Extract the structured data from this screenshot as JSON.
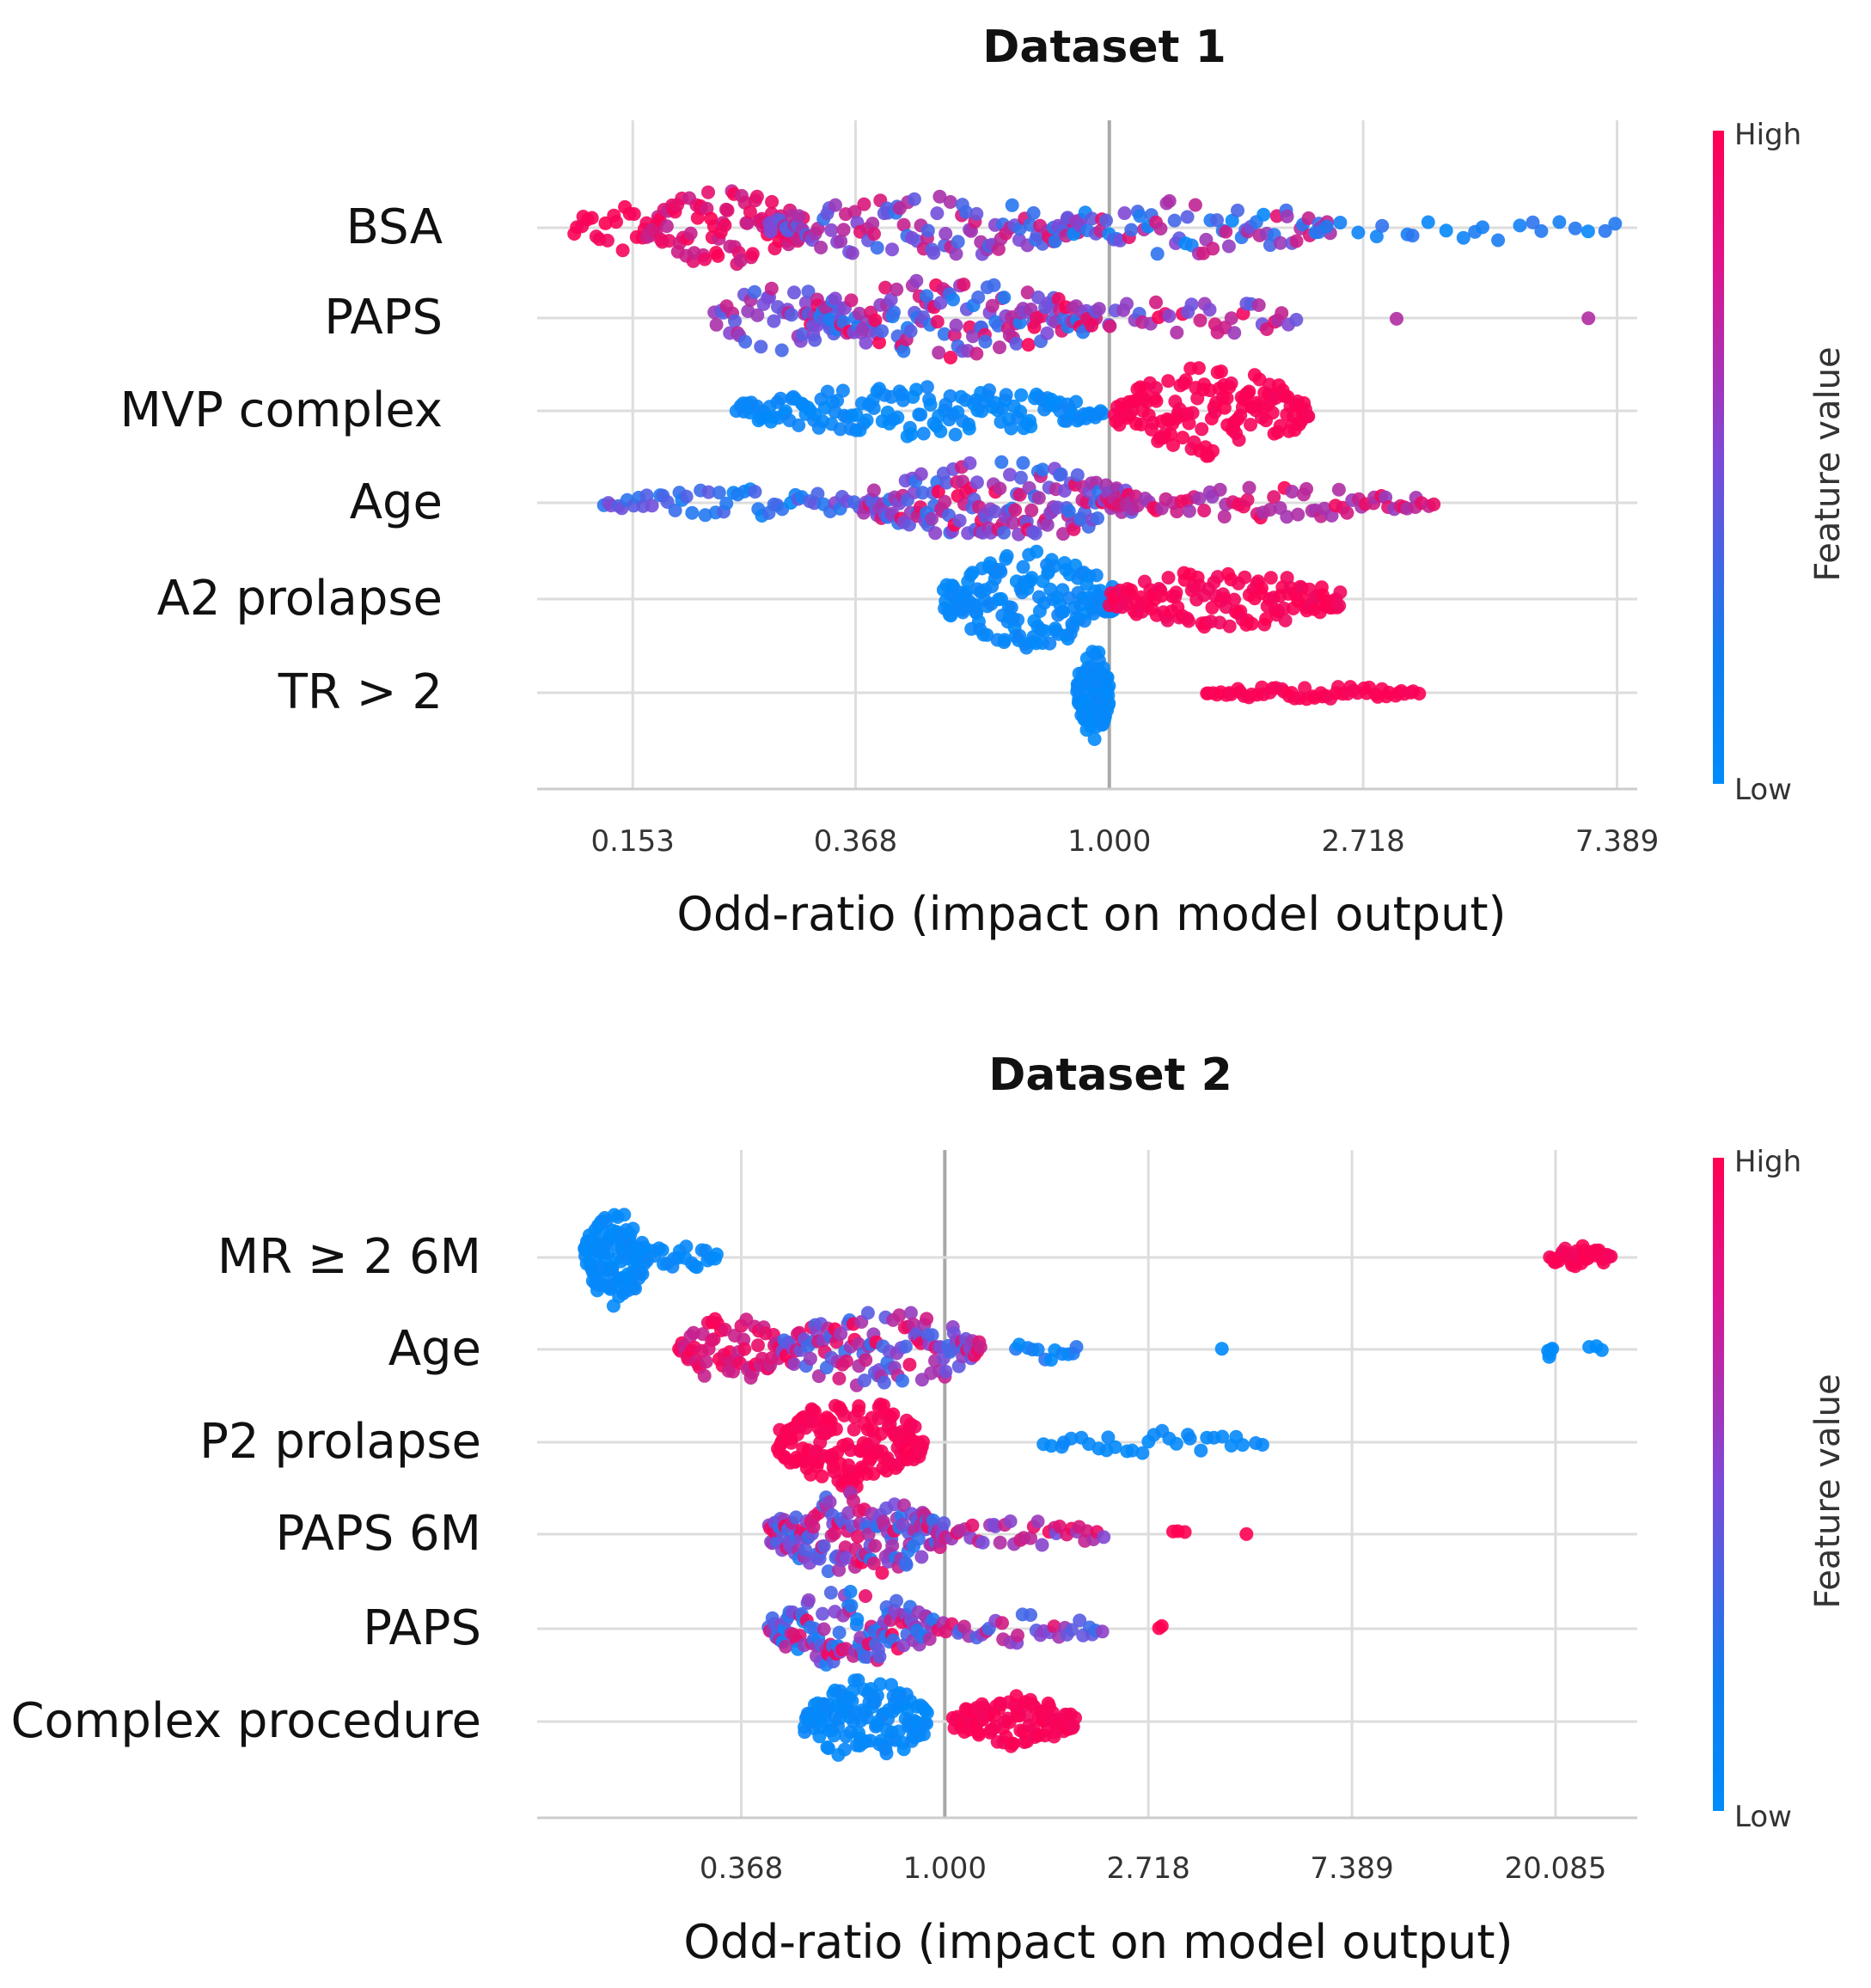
{
  "chart_data": [
    {
      "type": "scatter",
      "subtype": "shap-beeswarm",
      "title": "Dataset 1",
      "xlabel": "Odd-ratio (impact on model output)",
      "x_scale": "log",
      "ticks": [
        {
          "value": 0.153,
          "label": "0.153"
        },
        {
          "value": 0.368,
          "label": "0.368"
        },
        {
          "value": 1.0,
          "label": "1.000"
        },
        {
          "value": 2.718,
          "label": "2.718"
        },
        {
          "value": 7.389,
          "label": "7.389"
        }
      ],
      "xlim": [
        0.105,
        8.0
      ],
      "colorbar": {
        "title": "Feature value",
        "high_label": "High",
        "low_label": "Low",
        "high_color": "#ff0052",
        "low_color": "#008bfb"
      },
      "features": [
        {
          "name": "BSA",
          "segments": [
            {
              "from": 0.12,
              "to": 0.17,
              "n": 22,
              "c0": 0.95,
              "c1": 1.0,
              "w": 0.6
            },
            {
              "from": 0.16,
              "to": 0.3,
              "n": 90,
              "c0": 0.75,
              "c1": 1.0,
              "w": 1.0
            },
            {
              "from": 0.26,
              "to": 0.9,
              "n": 110,
              "c0": 0.15,
              "c1": 0.9,
              "w": 0.8
            },
            {
              "from": 0.8,
              "to": 2.4,
              "n": 75,
              "c0": 0.0,
              "c1": 0.9,
              "w": 0.75
            },
            {
              "from": 2.2,
              "to": 7.6,
              "n": 22,
              "c0": 0.0,
              "c1": 0.2,
              "w": 0.35
            }
          ]
        },
        {
          "name": "PAPS",
          "segments": [
            {
              "from": 0.21,
              "to": 0.35,
              "n": 45,
              "c0": 0.25,
              "c1": 0.8,
              "w": 0.85
            },
            {
              "from": 0.3,
              "to": 0.95,
              "n": 150,
              "c0": 0.1,
              "c1": 1.0,
              "w": 1.0
            },
            {
              "from": 0.9,
              "to": 2.1,
              "n": 40,
              "c0": 0.3,
              "c1": 1.0,
              "w": 0.55
            },
            {
              "from": 3.1,
              "to": 3.1,
              "n": 1,
              "c0": 0.7,
              "c1": 0.7,
              "w": 0.1
            },
            {
              "from": 6.6,
              "to": 6.6,
              "n": 1,
              "c0": 0.7,
              "c1": 0.7,
              "w": 0.1
            }
          ]
        },
        {
          "name": "MVP complex",
          "segments": [
            {
              "from": 0.23,
              "to": 0.98,
              "n": 150,
              "c0": 0.0,
              "c1": 0.06,
              "w": 0.65
            },
            {
              "from": 1.02,
              "to": 2.2,
              "n": 140,
              "c0": 0.96,
              "c1": 1.0,
              "w": 1.15
            }
          ]
        },
        {
          "name": "Age",
          "segments": [
            {
              "from": 0.135,
              "to": 0.4,
              "n": 55,
              "c0": 0.0,
              "c1": 0.55,
              "w": 0.35
            },
            {
              "from": 0.38,
              "to": 1.1,
              "n": 170,
              "c0": 0.15,
              "c1": 1.0,
              "w": 1.05
            },
            {
              "from": 1.0,
              "to": 3.6,
              "n": 70,
              "c0": 0.6,
              "c1": 1.0,
              "w": 0.4
            }
          ]
        },
        {
          "name": "A2 prolapse",
          "segments": [
            {
              "from": 0.52,
              "to": 1.02,
              "n": 160,
              "c0": 0.0,
              "c1": 0.06,
              "w": 1.25
            },
            {
              "from": 1.0,
              "to": 2.5,
              "n": 130,
              "c0": 0.94,
              "c1": 1.0,
              "w": 0.75
            }
          ]
        },
        {
          "name": "TR > 2",
          "segments": [
            {
              "from": 0.88,
              "to": 1.0,
              "n": 90,
              "c0": 0.0,
              "c1": 0.05,
              "w": 1.2
            },
            {
              "from": 1.45,
              "to": 3.4,
              "n": 55,
              "c0": 0.95,
              "c1": 1.0,
              "w": 0.18
            }
          ]
        }
      ]
    },
    {
      "type": "scatter",
      "subtype": "shap-beeswarm",
      "title": "Dataset 2",
      "xlabel": "Odd-ratio (impact on model output)",
      "x_scale": "log",
      "ticks": [
        {
          "value": 0.368,
          "label": "0.368"
        },
        {
          "value": 1.0,
          "label": "1.000"
        },
        {
          "value": 2.718,
          "label": "2.718"
        },
        {
          "value": 7.389,
          "label": "7.389"
        },
        {
          "value": 20.085,
          "label": "20.085"
        }
      ],
      "xlim": [
        0.135,
        30.0
      ],
      "colorbar": {
        "title": "Feature value",
        "high_label": "High",
        "low_label": "Low",
        "high_color": "#ff0052",
        "low_color": "#008bfb"
      },
      "features": [
        {
          "name": "MR ≥ 2 6M",
          "segments": [
            {
              "from": 0.17,
              "to": 0.23,
              "n": 110,
              "c0": 0.0,
              "c1": 0.04,
              "w": 1.25
            },
            {
              "from": 0.22,
              "to": 0.33,
              "n": 25,
              "c0": 0.0,
              "c1": 0.05,
              "w": 0.35
            },
            {
              "from": 19.5,
              "to": 26.5,
              "n": 35,
              "c0": 0.95,
              "c1": 1.0,
              "w": 0.3
            }
          ]
        },
        {
          "name": "Age",
          "segments": [
            {
              "from": 0.27,
              "to": 0.45,
              "n": 65,
              "c0": 0.75,
              "c1": 1.0,
              "w": 0.9
            },
            {
              "from": 0.45,
              "to": 1.2,
              "n": 120,
              "c0": 0.2,
              "c1": 1.0,
              "w": 1.05
            },
            {
              "from": 1.4,
              "to": 1.95,
              "n": 12,
              "c0": 0.0,
              "c1": 0.2,
              "w": 0.3
            },
            {
              "from": 3.9,
              "to": 3.9,
              "n": 1,
              "c0": 0.0,
              "c1": 0.0,
              "w": 0.1
            },
            {
              "from": 19.3,
              "to": 19.8,
              "n": 5,
              "c0": 0.0,
              "c1": 0.0,
              "w": 0.4
            },
            {
              "from": 23.0,
              "to": 26.0,
              "n": 3,
              "c0": 0.0,
              "c1": 0.0,
              "w": 0.1
            }
          ]
        },
        {
          "name": "P2 prolapse",
          "segments": [
            {
              "from": 0.44,
              "to": 0.9,
              "n": 160,
              "c0": 0.95,
              "c1": 1.0,
              "w": 1.15
            },
            {
              "from": 1.6,
              "to": 4.8,
              "n": 30,
              "c0": 0.0,
              "c1": 0.05,
              "w": 0.3
            }
          ]
        },
        {
          "name": "PAPS 6M",
          "segments": [
            {
              "from": 0.42,
              "to": 1.0,
              "n": 150,
              "c0": 0.1,
              "c1": 1.0,
              "w": 1.1
            },
            {
              "from": 1.0,
              "to": 2.2,
              "n": 35,
              "c0": 0.45,
              "c1": 1.0,
              "w": 0.35
            },
            {
              "from": 3.0,
              "to": 3.3,
              "n": 3,
              "c0": 1.0,
              "c1": 1.0,
              "w": 0.1
            },
            {
              "from": 4.4,
              "to": 4.4,
              "n": 1,
              "c0": 1.0,
              "c1": 1.0,
              "w": 0.1
            }
          ]
        },
        {
          "name": "PAPS",
          "segments": [
            {
              "from": 0.42,
              "to": 0.95,
              "n": 120,
              "c0": 0.0,
              "c1": 1.0,
              "w": 1.0
            },
            {
              "from": 0.95,
              "to": 2.2,
              "n": 35,
              "c0": 0.2,
              "c1": 1.0,
              "w": 0.4
            },
            {
              "from": 2.7,
              "to": 3.1,
              "n": 2,
              "c0": 1.0,
              "c1": 1.0,
              "w": 0.1
            }
          ]
        },
        {
          "name": "Complex procedure",
          "segments": [
            {
              "from": 0.5,
              "to": 0.92,
              "n": 130,
              "c0": 0.0,
              "c1": 0.05,
              "w": 1.1
            },
            {
              "from": 1.04,
              "to": 1.9,
              "n": 100,
              "c0": 0.95,
              "c1": 1.0,
              "w": 0.65
            }
          ]
        }
      ]
    }
  ]
}
